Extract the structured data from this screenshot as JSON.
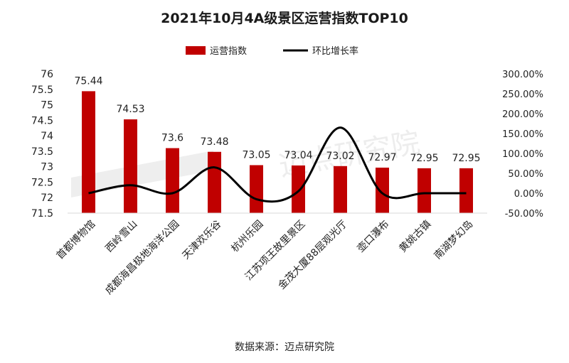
{
  "chart_data": {
    "type": "bar",
    "title": "2021年10月4A级景区运营指数TOP10",
    "source": "数据来源：迈点研究院",
    "watermark": "迈点研究院",
    "categories": [
      "首都博物馆",
      "西岭雪山",
      "成都海昌极地海洋公园",
      "天津欢乐谷",
      "杭州乐园",
      "江苏项王故里景区",
      "金茂大厦88层观光厅",
      "壶口瀑布",
      "黄姚古镇",
      "南湖梦幻岛"
    ],
    "series": [
      {
        "name": "运营指数",
        "type": "bar",
        "axis": "left",
        "color": "#c00000",
        "values": [
          75.44,
          74.53,
          73.6,
          73.48,
          73.05,
          73.04,
          73.02,
          72.97,
          72.95,
          72.95
        ],
        "labels": [
          "75.44",
          "74.53",
          "73.6",
          "73.48",
          "73.05",
          "73.04",
          "73.02",
          "72.97",
          "72.95",
          "72.95"
        ]
      },
      {
        "name": "环比增长率",
        "type": "line",
        "smooth": true,
        "axis": "right",
        "color": "#000000",
        "values": [
          0,
          20,
          0,
          65,
          -15,
          5,
          165,
          0,
          0,
          0
        ]
      }
    ],
    "y_left": {
      "min": 71.5,
      "max": 76,
      "step": 0.5,
      "ticks": [
        "71.5",
        "72",
        "72.5",
        "73",
        "73.5",
        "74",
        "74.5",
        "75",
        "75.5",
        "76"
      ]
    },
    "y_right": {
      "min": -50,
      "max": 300,
      "step": 50,
      "unit": "%",
      "ticks": [
        "-50.00%",
        "0.00%",
        "50.00%",
        "100.00%",
        "150.00%",
        "200.00%",
        "250.00%",
        "300.00%"
      ]
    },
    "grid": false,
    "legend_position": "top-center"
  }
}
